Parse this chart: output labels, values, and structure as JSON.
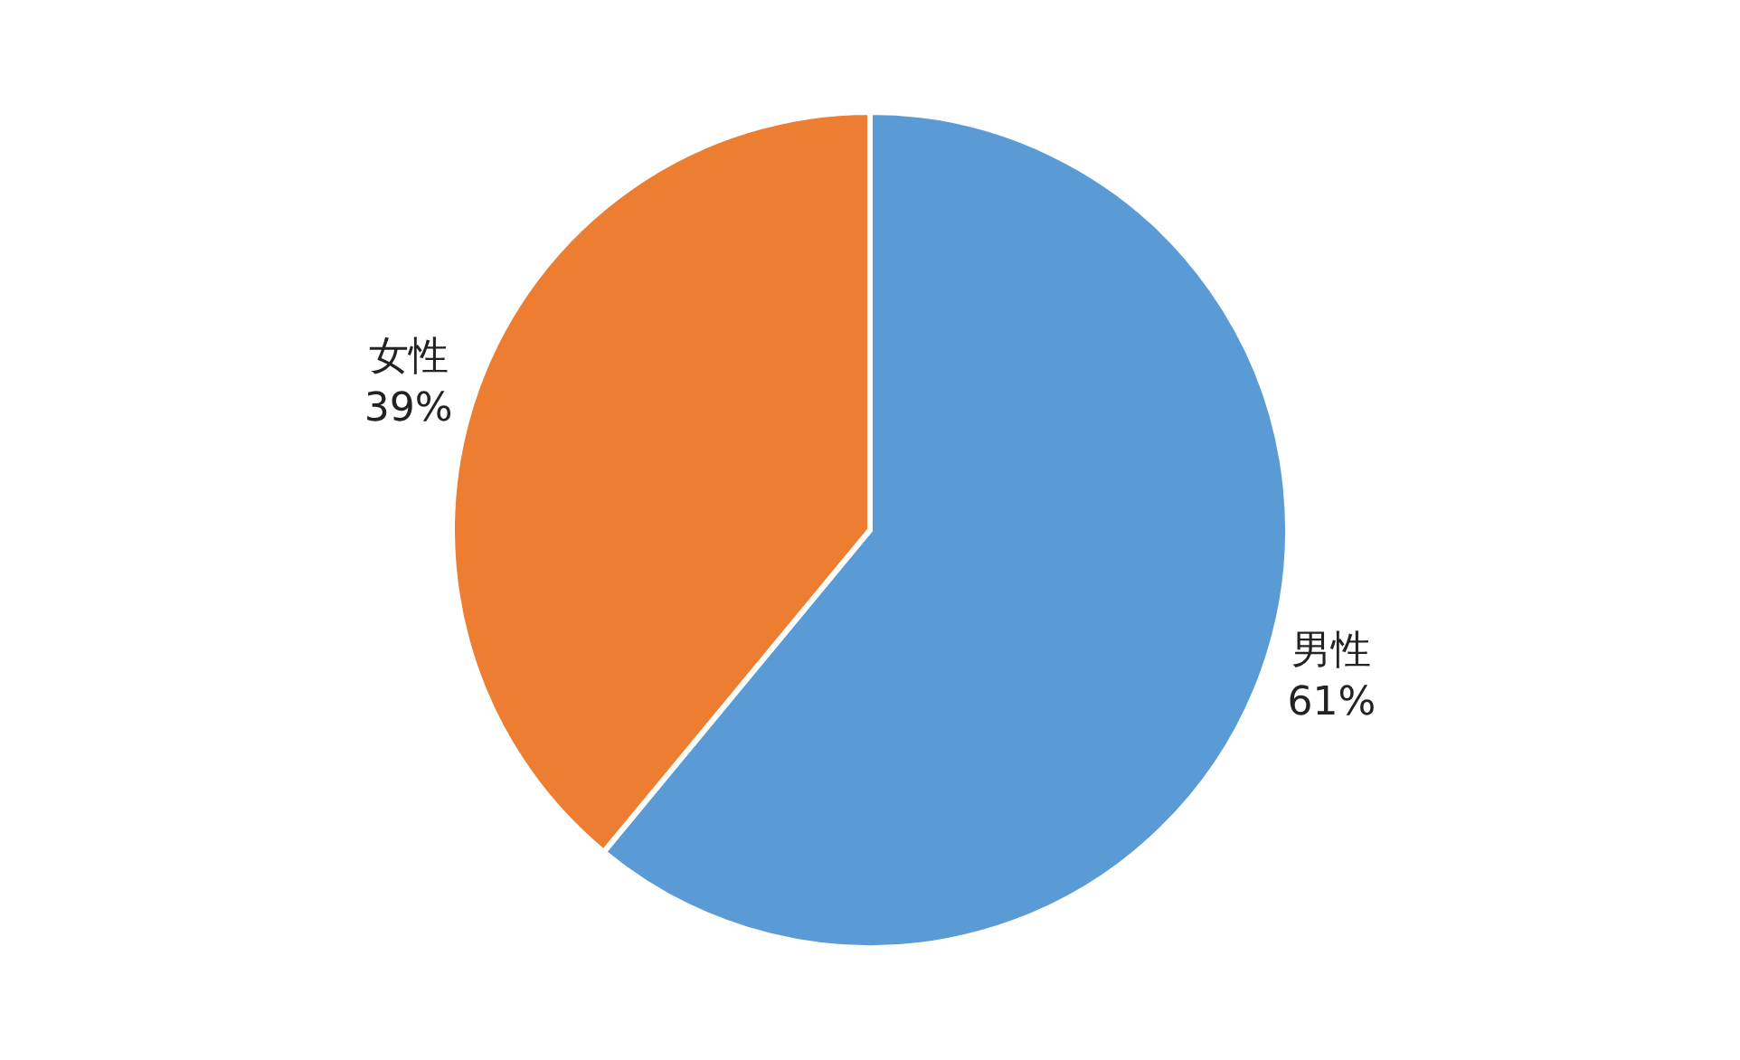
{
  "chart_data": {
    "type": "pie",
    "categories": [
      "男性",
      "女性"
    ],
    "values": [
      61,
      39
    ],
    "colors": [
      "#5b9bd5",
      "#ed7d31"
    ],
    "value_labels": [
      "61%",
      "39%"
    ],
    "legend": false
  }
}
